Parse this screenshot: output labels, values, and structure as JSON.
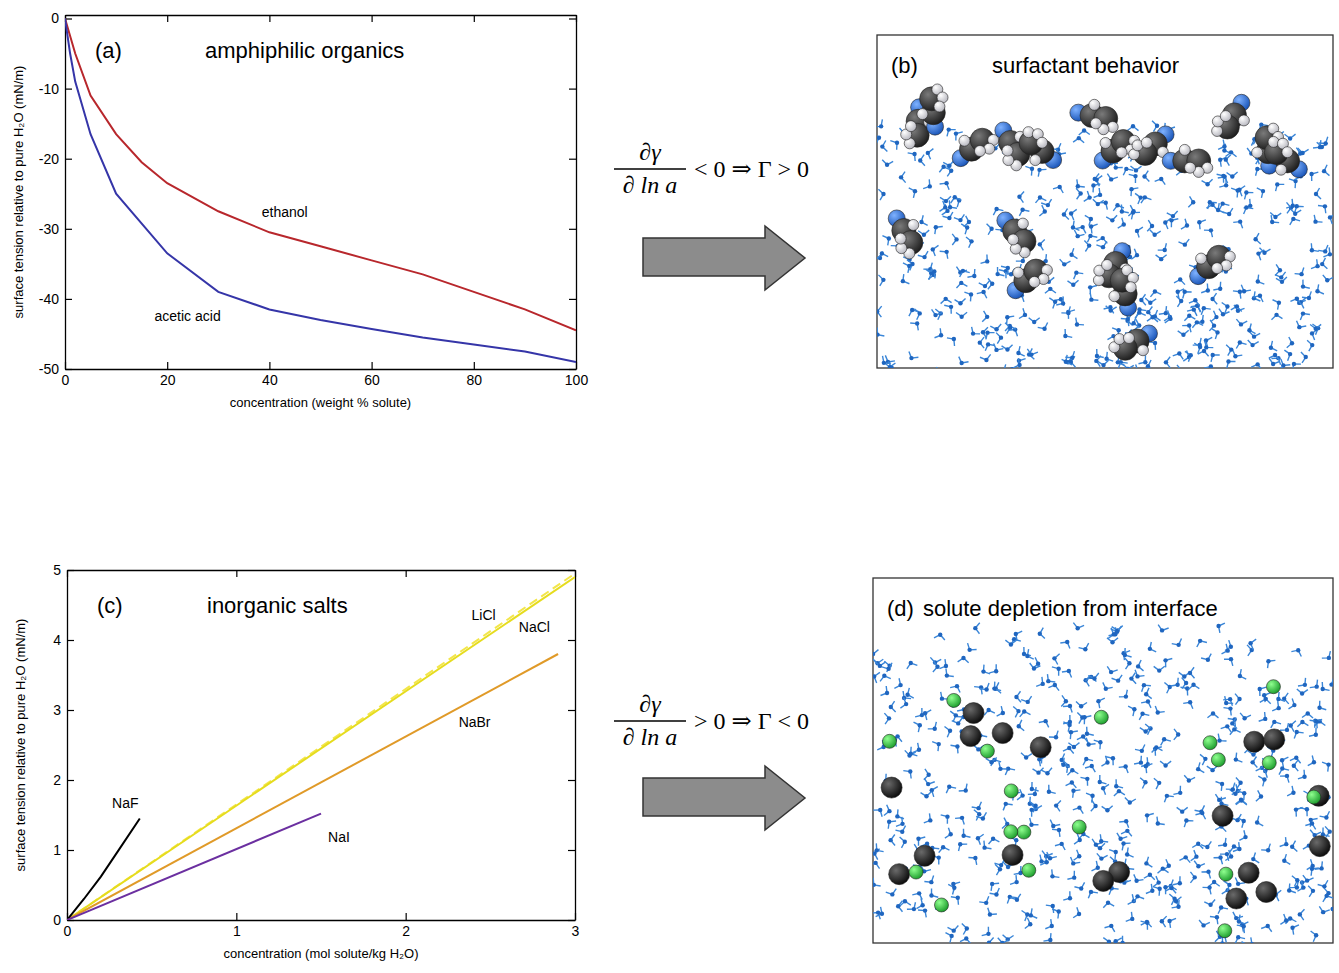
{
  "chart_data": [
    {
      "type": "line",
      "label": "(a)",
      "title": "amphiphilic organics",
      "x_label": "concentration (weight % solute)",
      "y_label": "surface tension relative to pure H₂O (mN/m)",
      "xlim": [
        0,
        100
      ],
      "xticks": [
        0,
        20,
        40,
        60,
        80,
        100
      ],
      "ylim": [
        -50,
        0.5
      ],
      "yticks": [
        -50,
        -40,
        -30,
        -20,
        -10,
        0
      ],
      "legend": "inline",
      "series": [
        {
          "name": "ethanol",
          "color": "#b8272c",
          "line_style": "solid",
          "x": [
            0,
            2,
            5,
            10,
            15,
            20,
            30,
            40,
            50,
            60,
            70,
            80,
            90,
            100
          ],
          "values": [
            0,
            -5,
            -11,
            -16.5,
            -20.5,
            -23.5,
            -27.5,
            -30.5,
            -32.5,
            -34.5,
            -36.5,
            -39,
            -41.5,
            -44.5
          ]
        },
        {
          "name": "acetic acid",
          "color": "#3535a8",
          "line_style": "solid",
          "x": [
            0,
            1,
            2,
            5,
            10,
            20,
            30,
            40,
            50,
            60,
            70,
            80,
            90,
            100
          ],
          "values": [
            0,
            -5,
            -9,
            -16.5,
            -25,
            -33.5,
            -39,
            -41.5,
            -43,
            -44.3,
            -45.5,
            -46.5,
            -47.5,
            -49
          ]
        }
      ]
    },
    {
      "type": "line",
      "label": "(c)",
      "title": "inorganic salts",
      "x_label": "concentration (mol solute/kg H₂O)",
      "y_label": "surface tension relative to pure H₂O (mN/m)",
      "xlim": [
        0,
        3
      ],
      "xticks": [
        0,
        1,
        2,
        3
      ],
      "ylim": [
        0,
        5
      ],
      "yticks": [
        0,
        1,
        2,
        3,
        4,
        5
      ],
      "legend": "inline",
      "series": [
        {
          "name": "LiCl",
          "color": "#f3e64a",
          "line_style": "dashed",
          "x": [
            0,
            3
          ],
          "values": [
            0,
            4.95
          ]
        },
        {
          "name": "NaCl",
          "color": "#e6dc1e",
          "line_style": "solid",
          "x": [
            0,
            3
          ],
          "values": [
            0,
            4.9
          ]
        },
        {
          "name": "NaBr",
          "color": "#e09a28",
          "line_style": "solid",
          "x": [
            0,
            2.9
          ],
          "values": [
            0,
            3.8
          ]
        },
        {
          "name": "NaF",
          "color": "#000000",
          "line_style": "solid",
          "x": [
            0,
            0.1,
            0.2,
            0.3,
            0.43
          ],
          "values": [
            0,
            0.3,
            0.62,
            0.98,
            1.45
          ]
        },
        {
          "name": "NaI",
          "color": "#6b2fa0",
          "line_style": "solid",
          "x": [
            0,
            1.5
          ],
          "values": [
            0,
            1.52
          ]
        }
      ]
    }
  ],
  "panels": [
    {
      "label": "(b)",
      "title": "surfactant behavior"
    },
    {
      "label": "(d)",
      "title": "solute depletion from interface"
    }
  ],
  "relations": [
    {
      "numerator": "∂γ",
      "denominator": "∂ ln a",
      "relation": "< 0 ⇒ Γ > 0"
    },
    {
      "numerator": "∂γ",
      "denominator": "∂ ln a",
      "relation": "> 0 ⇒ Γ < 0"
    }
  ]
}
